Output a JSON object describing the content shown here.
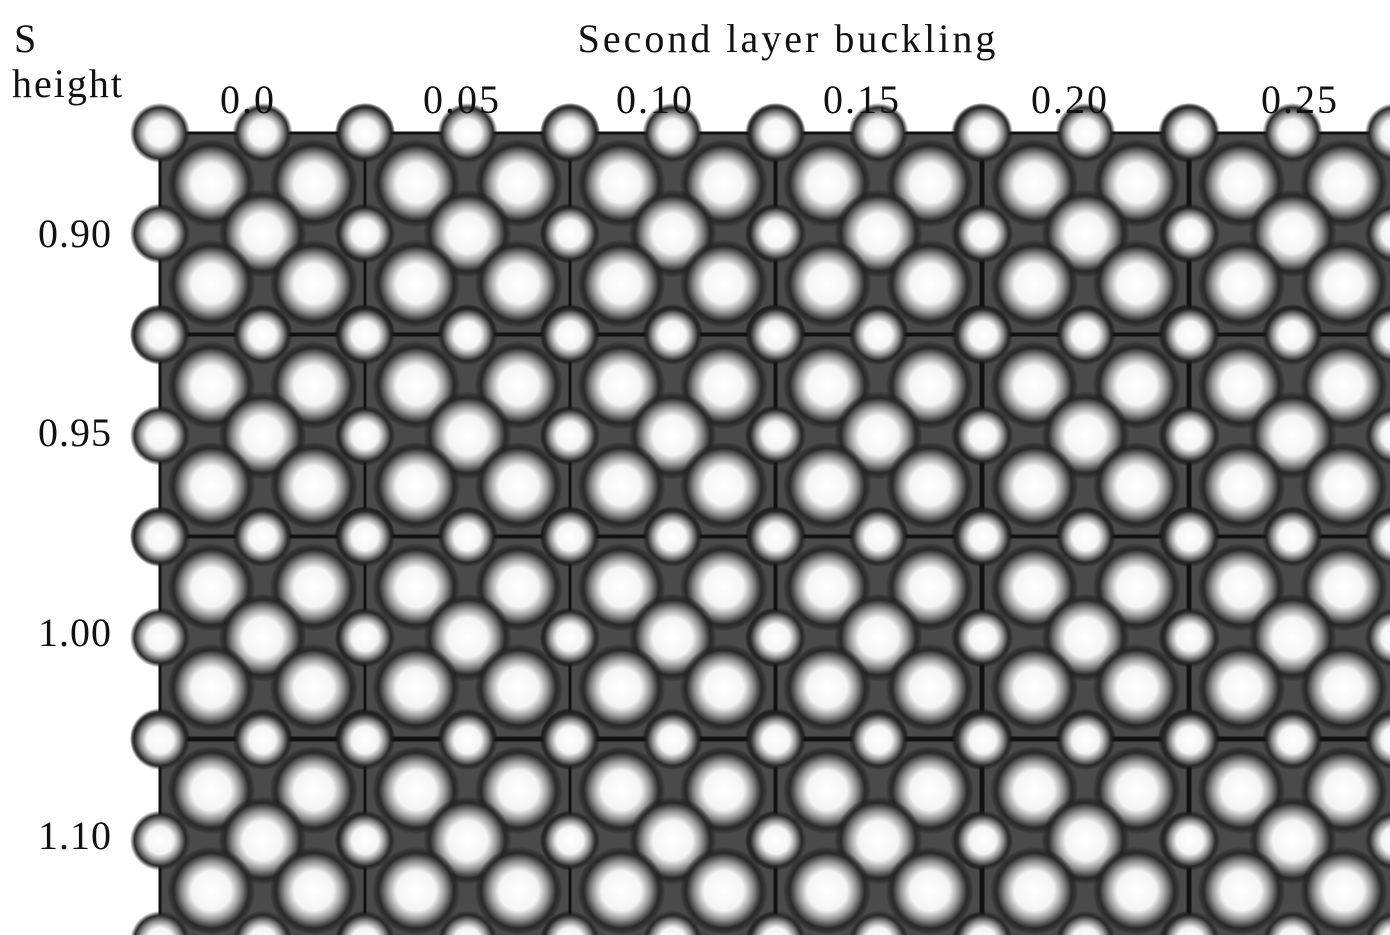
{
  "header": {
    "row_axis_label_line1": "S",
    "row_axis_label_line2": "height",
    "column_axis_title": "Second layer buckling"
  },
  "columns": [
    "0.0",
    "0.05",
    "0.10",
    "0.15",
    "0.20",
    "0.25"
  ],
  "rows": [
    "0.90",
    "0.95",
    "1.00",
    "1.10"
  ]
}
